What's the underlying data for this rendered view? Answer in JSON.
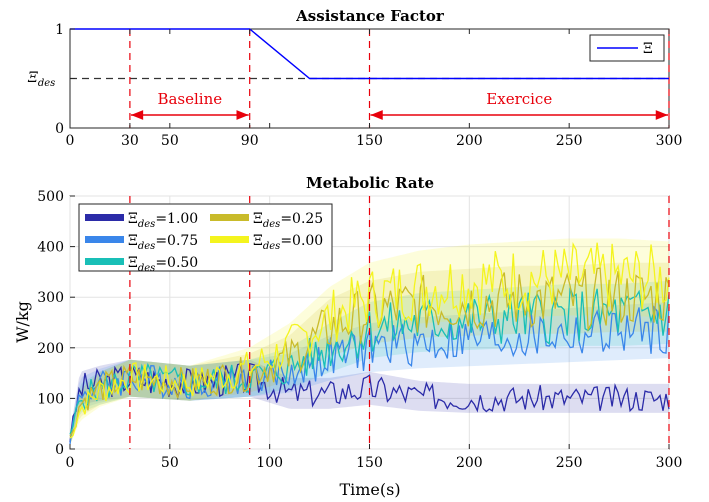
{
  "chart_data": [
    {
      "type": "line",
      "title": "Assistance Factor",
      "xlabel": "",
      "ylabel": "",
      "xlim": [
        0,
        300
      ],
      "ylim": [
        0,
        1
      ],
      "x_ticks": [
        0,
        30,
        50,
        90,
        150,
        200,
        250,
        300
      ],
      "y_ticks": [
        0,
        1
      ],
      "y_tick_labels": [
        "0",
        "1"
      ],
      "y_annotation": "Ξ_des",
      "grid": false,
      "legend_position": "top-right",
      "series": [
        {
          "name": "Ξ",
          "color": "#0000ff",
          "x": [
            0,
            90,
            120,
            300
          ],
          "y": [
            1,
            1,
            0.5,
            0.5
          ]
        }
      ],
      "reference_line": {
        "y": 0.5,
        "style": "dashed",
        "color": "#333333"
      },
      "vertical_lines": [
        30,
        90,
        150,
        300
      ],
      "vertical_line_color": "#e8000b",
      "annotations": [
        {
          "label": "Baseline",
          "from": 30,
          "to": 90
        },
        {
          "label": "Exercice",
          "from": 150,
          "to": 300
        }
      ],
      "extra_tick_mark": 100
    },
    {
      "type": "line",
      "title": "Metabolic Rate",
      "xlabel": "Time(s)",
      "ylabel": "W/kg",
      "xlim": [
        0,
        300
      ],
      "ylim": [
        0,
        500
      ],
      "x_ticks": [
        0,
        50,
        100,
        150,
        200,
        250,
        300
      ],
      "y_ticks": [
        0,
        100,
        200,
        300,
        400,
        500
      ],
      "grid": true,
      "legend_position": "top-left",
      "vertical_lines": [
        30,
        90,
        150,
        300
      ],
      "vertical_line_color": "#e8000b",
      "series": [
        {
          "name": "Ξ_des=1.00",
          "color": "#2b2ba8",
          "x": [
            0,
            5,
            15,
            30,
            60,
            90,
            110,
            130,
            150,
            175,
            200,
            225,
            250,
            275,
            300
          ],
          "y": [
            20,
            120,
            130,
            140,
            130,
            140,
            110,
            110,
            120,
            105,
            100,
            100,
            100,
            100,
            100
          ]
        },
        {
          "name": "Ξ_des=0.75",
          "color": "#3a86ea",
          "x": [
            0,
            5,
            15,
            30,
            60,
            90,
            110,
            130,
            150,
            175,
            200,
            225,
            250,
            275,
            300
          ],
          "y": [
            20,
            110,
            125,
            140,
            130,
            140,
            150,
            180,
            200,
            210,
            215,
            220,
            225,
            230,
            235
          ]
        },
        {
          "name": "Ξ_des=0.50",
          "color": "#19bfb7",
          "x": [
            0,
            5,
            15,
            30,
            60,
            90,
            110,
            130,
            150,
            175,
            200,
            225,
            250,
            275,
            300
          ],
          "y": [
            20,
            100,
            120,
            140,
            130,
            140,
            160,
            200,
            235,
            250,
            255,
            260,
            265,
            265,
            270
          ]
        },
        {
          "name": "Ξ_des=0.25",
          "color": "#c9bb2a",
          "x": [
            0,
            5,
            15,
            30,
            60,
            90,
            110,
            130,
            150,
            175,
            200,
            225,
            250,
            275,
            300
          ],
          "y": [
            20,
            90,
            120,
            140,
            130,
            150,
            180,
            240,
            270,
            285,
            290,
            295,
            295,
            300,
            300
          ]
        },
        {
          "name": "Ξ_des=0.00",
          "color": "#f4f41e",
          "x": [
            0,
            5,
            15,
            30,
            60,
            90,
            110,
            130,
            150,
            175,
            200,
            225,
            250,
            275,
            300
          ],
          "y": [
            20,
            80,
            115,
            140,
            130,
            160,
            200,
            260,
            300,
            320,
            330,
            335,
            340,
            340,
            335
          ]
        }
      ]
    }
  ]
}
